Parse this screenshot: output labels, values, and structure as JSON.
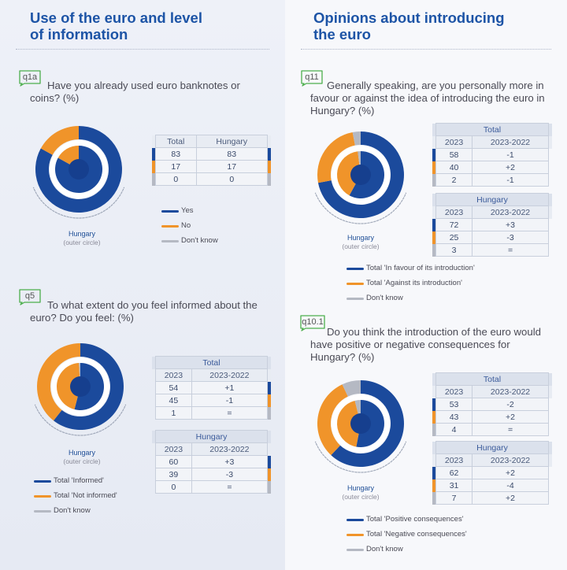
{
  "colors": {
    "blue": "#1b4a9c",
    "orange": "#f0942a",
    "grey": "#b5b9c3"
  },
  "left": {
    "heading": "Use of the euro and level\nof information",
    "q1a": {
      "badge": "q1a",
      "question": "Have you already used euro banknotes or coins? (%)",
      "caption": "Hungary",
      "caption_sub": "(outer circle)",
      "table": {
        "headers": [
          "Total",
          "Hungary"
        ],
        "rows": [
          [
            "83",
            "83"
          ],
          [
            "17",
            "17"
          ],
          [
            "0",
            "0"
          ]
        ]
      },
      "legend": [
        "Yes",
        "No",
        "Don't know"
      ]
    },
    "q5": {
      "badge": "q5",
      "question": "To what extent do you feel informed about the euro? Do you feel: (%)",
      "caption": "Hungary",
      "caption_sub": "(outer circle)",
      "total": {
        "title": "Total",
        "headers": [
          "2023",
          "2023-2022"
        ],
        "rows": [
          [
            "54",
            "+1"
          ],
          [
            "45",
            "-1"
          ],
          [
            "1",
            "="
          ]
        ]
      },
      "hungary": {
        "title": "Hungary",
        "headers": [
          "2023",
          "2023-2022"
        ],
        "rows": [
          [
            "60",
            "+3"
          ],
          [
            "39",
            "-3"
          ],
          [
            "0",
            "="
          ]
        ]
      },
      "legend": [
        "Total 'Informed'",
        "Total 'Not informed'",
        "Don't know"
      ]
    }
  },
  "right": {
    "heading": "Opinions about introducing\nthe euro",
    "q11": {
      "badge": "q11",
      "question": "Generally speaking, are you personally more in favour or against the idea of introducing the euro in Hungary? (%)",
      "caption": "Hungary",
      "caption_sub": "(outer circle)",
      "total": {
        "title": "Total",
        "headers": [
          "2023",
          "2023-2022"
        ],
        "rows": [
          [
            "58",
            "-1"
          ],
          [
            "40",
            "+2"
          ],
          [
            "2",
            "-1"
          ]
        ]
      },
      "hungary": {
        "title": "Hungary",
        "headers": [
          "2023",
          "2023-2022"
        ],
        "rows": [
          [
            "72",
            "+3"
          ],
          [
            "25",
            "-3"
          ],
          [
            "3",
            "="
          ]
        ]
      },
      "legend": [
        "Total 'In favour of its introduction'",
        "Total 'Against its introduction'",
        "Don't know"
      ]
    },
    "q10_1": {
      "badge": "q10.1",
      "question": "Do you think the introduction of the  euro would have positive or negative consequences for Hungary? (%)",
      "caption": "Hungary",
      "caption_sub": "(outer circle)",
      "total": {
        "title": "Total",
        "headers": [
          "2023",
          "2023-2022"
        ],
        "rows": [
          [
            "53",
            "-2"
          ],
          [
            "43",
            "+2"
          ],
          [
            "4",
            "="
          ]
        ]
      },
      "hungary": {
        "title": "Hungary",
        "headers": [
          "2023",
          "2023-2022"
        ],
        "rows": [
          [
            "62",
            "+2"
          ],
          [
            "31",
            "-4"
          ],
          [
            "7",
            "+2"
          ]
        ]
      },
      "legend": [
        "Total 'Positive consequences'",
        "Total 'Negative consequences'",
        "Don't know"
      ]
    }
  },
  "chart_data": [
    {
      "type": "pie",
      "id": "q1a",
      "title": "Have you already used euro banknotes or coins? (%)",
      "categories": [
        "Yes",
        "No",
        "Don't know"
      ],
      "series": [
        {
          "name": "Hungary (outer circle)",
          "values": [
            83,
            17,
            0
          ]
        },
        {
          "name": "Total (inner circle)",
          "values": [
            83,
            17,
            0
          ]
        }
      ]
    },
    {
      "type": "pie",
      "id": "q5",
      "title": "To what extent do you feel informed about the euro? Do you feel: (%)",
      "categories": [
        "Total 'Informed'",
        "Total 'Not informed'",
        "Don't know"
      ],
      "series": [
        {
          "name": "Hungary (outer circle)",
          "values": [
            60,
            39,
            0
          ]
        },
        {
          "name": "Total (inner circle)",
          "values": [
            54,
            45,
            1
          ]
        }
      ]
    },
    {
      "type": "pie",
      "id": "q11",
      "title": "Generally speaking, are you personally more in favour or against the idea of introducing the euro in Hungary? (%)",
      "categories": [
        "Total 'In favour of its introduction'",
        "Total 'Against its introduction'",
        "Don't know"
      ],
      "series": [
        {
          "name": "Hungary (outer circle)",
          "values": [
            72,
            25,
            3
          ]
        },
        {
          "name": "Total (inner circle)",
          "values": [
            58,
            40,
            2
          ]
        }
      ]
    },
    {
      "type": "pie",
      "id": "q10_1",
      "title": "Do you think the introduction of the  euro would have positive or negative consequences for Hungary? (%)",
      "categories": [
        "Total 'Positive consequences'",
        "Total 'Negative consequences'",
        "Don't know"
      ],
      "series": [
        {
          "name": "Hungary (outer circle)",
          "values": [
            62,
            31,
            7
          ]
        },
        {
          "name": "Total (inner circle)",
          "values": [
            53,
            43,
            4
          ]
        }
      ]
    }
  ]
}
